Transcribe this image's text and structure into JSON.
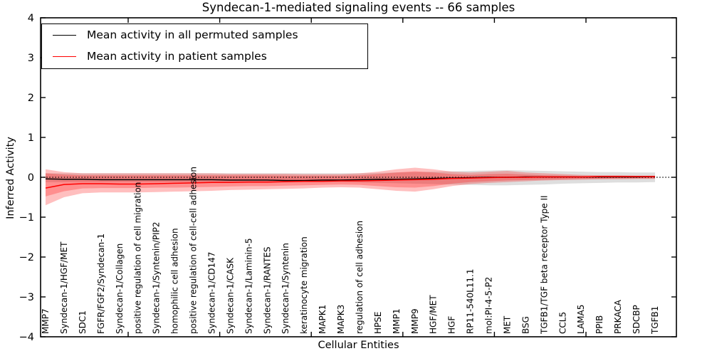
{
  "chart_data": {
    "type": "line",
    "title": "Syndecan-1-mediated signaling events -- 66 samples",
    "xlabel": "Cellular Entities",
    "ylabel": "Inferred Activity",
    "ylim": [
      -4,
      4
    ],
    "yticks": [
      "4",
      "3",
      "2",
      "1",
      "0",
      "−1",
      "−2",
      "−3",
      "−4"
    ],
    "grid": false,
    "legend_position": "upper left",
    "categories": [
      "MMP7",
      "Syndecan-1/HGF/MET",
      "SDC1",
      "FGFR/FGF2/Syndecan-1",
      "Syndecan-1/Collagen",
      "positive regulation of cell migration",
      "Syndecan-1/Syntenin/PIP2",
      "homophilic cell adhesion",
      "positive regulation of cell-cell adhesion",
      "Syndecan-1/CD147",
      "Syndecan-1/CASK",
      "Syndecan-1/Laminin-5",
      "Syndecan-1/RANTES",
      "Syndecan-1/Syntenin",
      "keratinocyte migration",
      "MAPK1",
      "MAPK3",
      "regulation of cell adhesion",
      "HPSE",
      "MMP1",
      "MMP9",
      "HGF/MET",
      "HGF",
      "RP11-540L11.1",
      "mol:PI-4-5-P2",
      "MET",
      "BSG",
      "TGFB1/TGF beta receptor Type II",
      "CCL5",
      "LAMA5",
      "PPIB",
      "PRKACA",
      "SDCBP",
      "TGFB1"
    ],
    "series": [
      {
        "name": "Mean activity in all permuted samples",
        "color": "#000000",
        "values": [
          -0.04,
          -0.05,
          -0.05,
          -0.06,
          -0.06,
          -0.06,
          -0.06,
          -0.06,
          -0.06,
          -0.06,
          -0.07,
          -0.07,
          -0.07,
          -0.08,
          -0.08,
          -0.07,
          -0.07,
          -0.06,
          -0.05,
          -0.05,
          -0.04,
          -0.03,
          -0.02,
          -0.01,
          0.0,
          0.0,
          0.01,
          0.01,
          0.01,
          0.01,
          0.01,
          0.01,
          0.01,
          0.02
        ]
      },
      {
        "name": "Mean activity in patient samples",
        "color": "#ff0000",
        "values": [
          -0.27,
          -0.18,
          -0.16,
          -0.16,
          -0.17,
          -0.17,
          -0.16,
          -0.15,
          -0.14,
          -0.13,
          -0.13,
          -0.12,
          -0.12,
          -0.11,
          -0.1,
          -0.1,
          -0.09,
          -0.09,
          -0.08,
          -0.07,
          -0.06,
          -0.05,
          -0.03,
          -0.02,
          -0.01,
          0.0,
          0.0,
          0.01,
          0.01,
          0.01,
          0.02,
          0.02,
          0.02,
          0.02
        ]
      }
    ],
    "bands": [
      {
        "name": "permuted-samples-range",
        "color": "#999999",
        "opacity": 0.32,
        "upper": [
          0.1,
          0.1,
          0.1,
          0.1,
          0.1,
          0.1,
          0.1,
          0.1,
          0.1,
          0.1,
          0.1,
          0.1,
          0.1,
          0.1,
          0.1,
          0.1,
          0.1,
          0.1,
          0.11,
          0.12,
          0.13,
          0.14,
          0.15,
          0.16,
          0.17,
          0.18,
          0.17,
          0.16,
          0.15,
          0.14,
          0.13,
          0.13,
          0.12,
          0.12
        ],
        "lower": [
          -0.12,
          -0.12,
          -0.12,
          -0.12,
          -0.12,
          -0.12,
          -0.12,
          -0.12,
          -0.12,
          -0.12,
          -0.12,
          -0.12,
          -0.12,
          -0.12,
          -0.12,
          -0.12,
          -0.12,
          -0.13,
          -0.14,
          -0.15,
          -0.16,
          -0.17,
          -0.18,
          -0.19,
          -0.2,
          -0.2,
          -0.19,
          -0.18,
          -0.16,
          -0.15,
          -0.14,
          -0.13,
          -0.13,
          -0.12
        ]
      },
      {
        "name": "patient-samples-range-outer",
        "color": "#ff0000",
        "opacity": 0.25,
        "upper": [
          0.2,
          0.13,
          0.1,
          0.1,
          0.1,
          0.1,
          0.1,
          0.1,
          0.1,
          0.1,
          0.09,
          0.09,
          0.09,
          0.09,
          0.08,
          0.08,
          0.08,
          0.1,
          0.14,
          0.2,
          0.24,
          0.2,
          0.14,
          0.12,
          0.14,
          0.16,
          0.12,
          0.1,
          0.08,
          0.06,
          0.05,
          0.05,
          0.04,
          0.04
        ],
        "lower": [
          -0.7,
          -0.5,
          -0.4,
          -0.38,
          -0.38,
          -0.38,
          -0.37,
          -0.36,
          -0.35,
          -0.34,
          -0.32,
          -0.31,
          -0.3,
          -0.29,
          -0.28,
          -0.26,
          -0.25,
          -0.26,
          -0.3,
          -0.34,
          -0.36,
          -0.3,
          -0.22,
          -0.17,
          -0.14,
          -0.12,
          -0.1,
          -0.08,
          -0.07,
          -0.06,
          -0.05,
          -0.05,
          -0.04,
          -0.04
        ]
      },
      {
        "name": "patient-samples-range-inner",
        "color": "#ff0000",
        "opacity": 0.25,
        "upper": [
          0.1,
          0.07,
          0.05,
          0.05,
          0.05,
          0.05,
          0.05,
          0.05,
          0.05,
          0.05,
          0.05,
          0.05,
          0.05,
          0.04,
          0.04,
          0.04,
          0.04,
          0.05,
          0.08,
          0.12,
          0.15,
          0.12,
          0.08,
          0.06,
          0.08,
          0.09,
          0.07,
          0.05,
          0.04,
          0.03,
          0.03,
          0.03,
          0.02,
          0.02
        ],
        "lower": [
          -0.48,
          -0.35,
          -0.28,
          -0.27,
          -0.27,
          -0.27,
          -0.26,
          -0.26,
          -0.25,
          -0.24,
          -0.23,
          -0.22,
          -0.22,
          -0.21,
          -0.2,
          -0.19,
          -0.18,
          -0.19,
          -0.22,
          -0.25,
          -0.26,
          -0.22,
          -0.16,
          -0.12,
          -0.1,
          -0.08,
          -0.07,
          -0.06,
          -0.05,
          -0.04,
          -0.04,
          -0.03,
          -0.03,
          -0.03
        ]
      }
    ],
    "zero_line": {
      "y": 0,
      "style": "dotted",
      "color": "#000000"
    }
  }
}
